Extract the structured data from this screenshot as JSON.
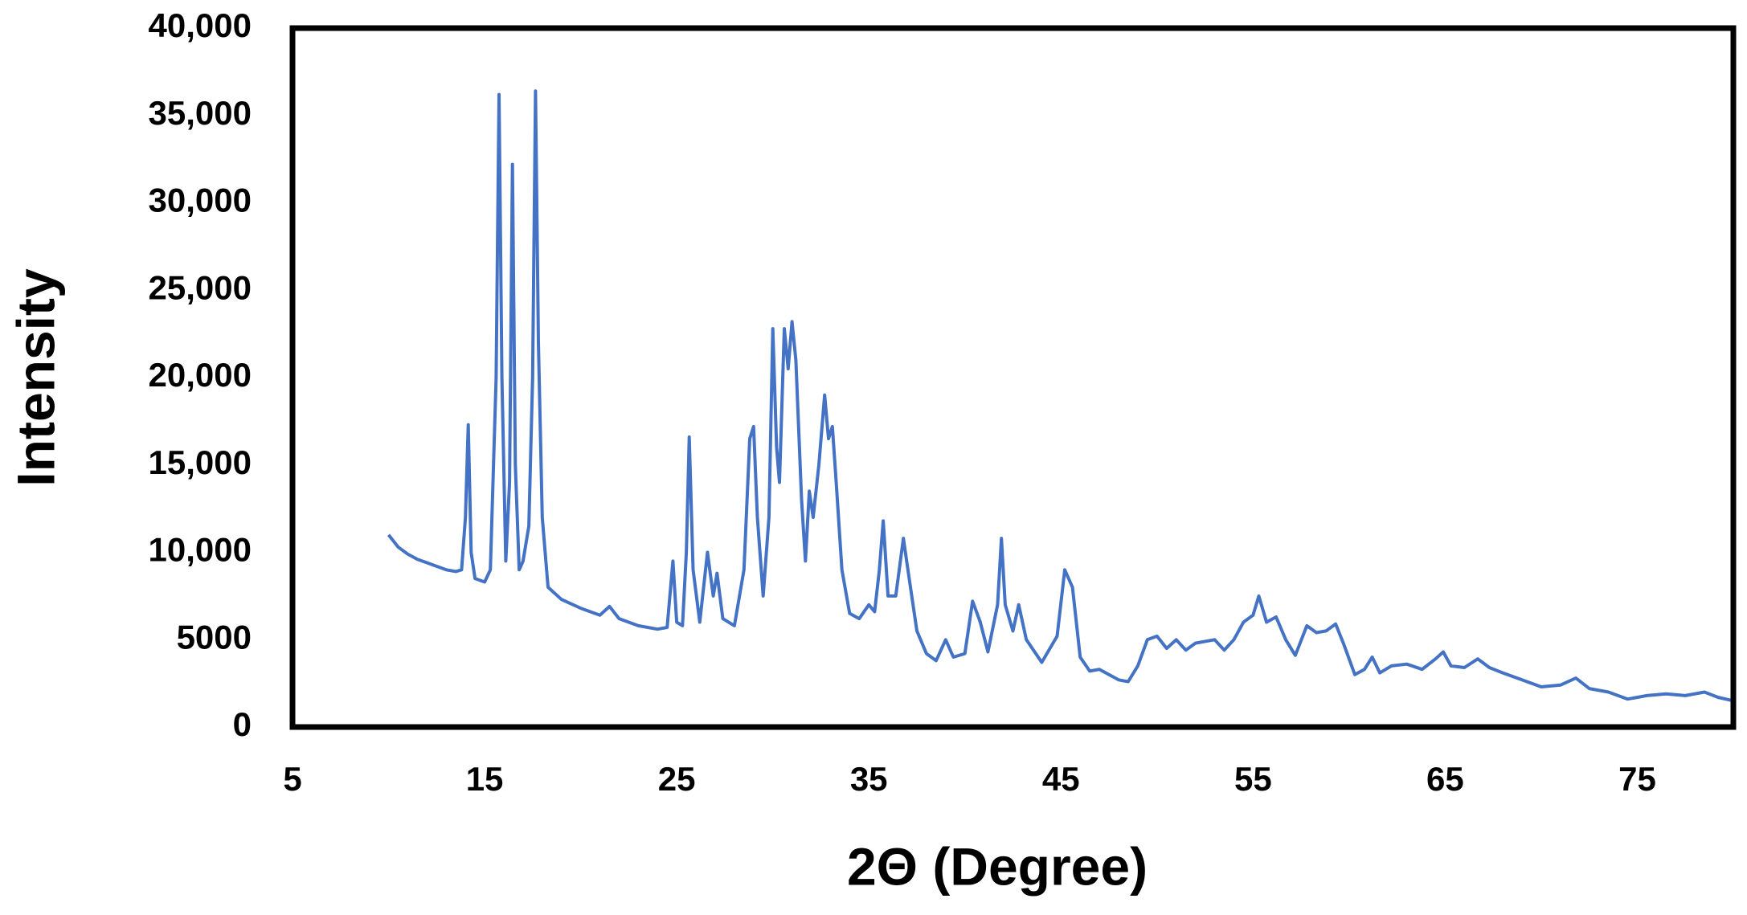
{
  "chart_data": {
    "type": "line",
    "x_label": "2Θ (Degree)",
    "y_label": "Intensity",
    "xlim": [
      5,
      80
    ],
    "xticks": [
      5,
      15,
      25,
      35,
      45,
      55,
      65,
      75
    ],
    "ylim": [
      0,
      40000
    ],
    "yticks": [
      0,
      5000,
      {
        "value": 10000,
        "label": "10,000"
      },
      {
        "value": 15000,
        "label": "15,000"
      },
      {
        "value": 20000,
        "label": "20,000"
      },
      {
        "value": 25000,
        "label": "25,000"
      },
      {
        "value": 30000,
        "label": "30,000"
      },
      {
        "value": 35000,
        "label": "35,000"
      },
      {
        "value": 40000,
        "label": "40,000"
      }
    ],
    "grid": false,
    "x": [
      10.0,
      10.5,
      11,
      11.5,
      12,
      12.5,
      13,
      13.5,
      13.8,
      14.0,
      14.15,
      14.3,
      14.5,
      15.0,
      15.3,
      15.6,
      15.75,
      15.9,
      16.1,
      16.3,
      16.45,
      16.6,
      16.8,
      17.0,
      17.3,
      17.5,
      17.65,
      17.8,
      18.0,
      18.3,
      19,
      20,
      21,
      21.5,
      22,
      23,
      24,
      24.5,
      24.8,
      25.0,
      25.3,
      25.5,
      25.65,
      25.85,
      26.2,
      26.6,
      26.9,
      27.1,
      27.4,
      28,
      28.5,
      28.8,
      29.0,
      29.2,
      29.5,
      29.8,
      30.0,
      30.2,
      30.35,
      30.6,
      30.8,
      31.0,
      31.2,
      31.5,
      31.7,
      31.9,
      32.1,
      32.4,
      32.7,
      32.9,
      33.1,
      33.3,
      33.6,
      34.0,
      34.5,
      35.0,
      35.3,
      35.55,
      35.75,
      36.0,
      36.4,
      36.8,
      37.1,
      37.5,
      38,
      38.5,
      39.0,
      39.4,
      40,
      40.4,
      40.8,
      41.2,
      41.7,
      41.9,
      42.1,
      42.5,
      42.8,
      43.2,
      44,
      44.8,
      45.2,
      45.6,
      46.0,
      46.5,
      47,
      48,
      48.5,
      49.0,
      49.5,
      50,
      50.5,
      51,
      51.5,
      52,
      53,
      53.5,
      54,
      54.5,
      55.0,
      55.3,
      55.7,
      56.2,
      56.7,
      57.2,
      57.8,
      58.3,
      58.8,
      59.3,
      59.7,
      60.3,
      60.8,
      61.2,
      61.6,
      62.2,
      63,
      63.8,
      64.5,
      64.9,
      65.3,
      66,
      66.7,
      67.3,
      68,
      69,
      70,
      71,
      71.8,
      72.5,
      73.5,
      74.5,
      75.5,
      76.5,
      77.5,
      78.5,
      79.2,
      80
    ],
    "series": [
      {
        "color": "#4472c4",
        "values": [
          11000,
          10300,
          9900,
          9600,
          9400,
          9200,
          9000,
          8900,
          9000,
          12000,
          17300,
          10000,
          8500,
          8300,
          9000,
          20000,
          36200,
          20000,
          9500,
          14000,
          32200,
          15000,
          9000,
          9500,
          11500,
          20000,
          36400,
          22000,
          12000,
          8000,
          7300,
          6800,
          6400,
          6900,
          6200,
          5800,
          5600,
          5700,
          9500,
          6000,
          5800,
          10000,
          16600,
          9000,
          6000,
          10000,
          7500,
          8800,
          6200,
          5800,
          9000,
          16500,
          17200,
          12000,
          7500,
          12000,
          22800,
          16000,
          14000,
          22800,
          20500,
          23200,
          21000,
          13000,
          9500,
          13500,
          12000,
          15000,
          19000,
          16500,
          17200,
          14000,
          9000,
          6500,
          6200,
          7000,
          6600,
          9000,
          11800,
          7500,
          7500,
          10800,
          8500,
          5500,
          4200,
          3800,
          5000,
          4000,
          4200,
          7200,
          6000,
          4300,
          7000,
          10800,
          7000,
          5500,
          7000,
          5000,
          3700,
          5200,
          9000,
          8000,
          4000,
          3200,
          3300,
          2700,
          2600,
          3500,
          5000,
          5200,
          4500,
          5000,
          4400,
          4800,
          5000,
          4400,
          5000,
          6000,
          6400,
          7500,
          6000,
          6300,
          5000,
          4100,
          5800,
          5400,
          5500,
          5900,
          4800,
          3000,
          3300,
          4000,
          3100,
          3500,
          3600,
          3300,
          3900,
          4300,
          3500,
          3400,
          3900,
          3400,
          3100,
          2700,
          2300,
          2400,
          2800,
          2200,
          2000,
          1600,
          1800,
          1900,
          1800,
          2000,
          1700,
          1500
        ]
      }
    ]
  }
}
